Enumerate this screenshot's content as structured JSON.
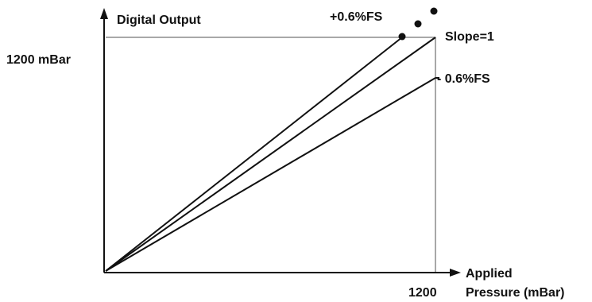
{
  "labels": {
    "y_axis": "Digital Output",
    "x_axis_line1": "Applied",
    "x_axis_line2": "Pressure (mBar)",
    "y_full_scale": "1200 mBar",
    "x_full_scale": "1200",
    "upper_limit": "+0.6%FS",
    "nominal": "Slope=1",
    "lower_limit": "- 0.6%FS"
  },
  "colors": {
    "axis": "#111111",
    "line": "#111111",
    "guide": "#8c8c8c",
    "text": "#111111"
  }
}
